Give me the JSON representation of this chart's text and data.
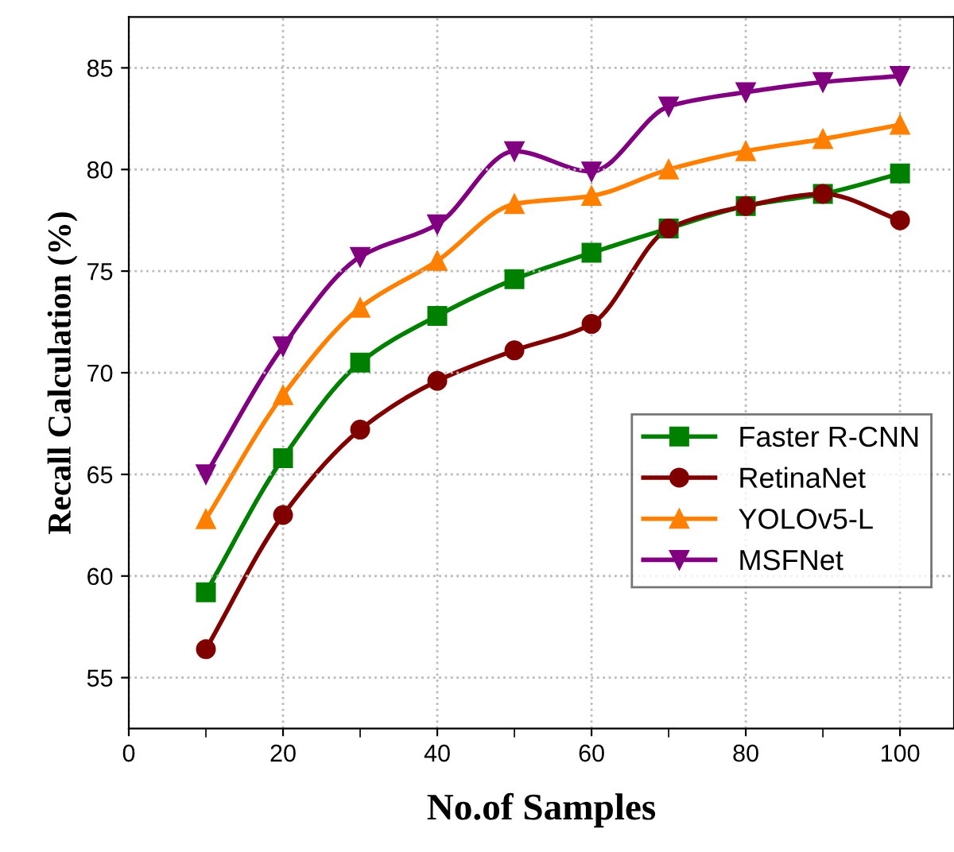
{
  "chart_data": {
    "type": "line",
    "xlabel": "No.of Samples",
    "ylabel": "Recall Calculation (%)",
    "x": [
      10,
      20,
      30,
      40,
      50,
      60,
      70,
      80,
      90,
      100
    ],
    "xlim": [
      0,
      107
    ],
    "xticks": [
      0,
      20,
      40,
      60,
      80,
      100
    ],
    "ylim": [
      52.5,
      87.5
    ],
    "yticks": [
      55,
      60,
      65,
      70,
      75,
      80,
      85
    ],
    "grid": true,
    "legend": "right",
    "line_style": "solid",
    "series": [
      {
        "name": "Faster R-CNN",
        "color": "#008000",
        "marker": "square",
        "values": [
          59.2,
          65.8,
          70.5,
          72.8,
          74.6,
          75.9,
          77.1,
          78.2,
          78.8,
          79.8
        ]
      },
      {
        "name": "RetinaNet",
        "color": "#800000",
        "marker": "circle",
        "values": [
          56.4,
          63.0,
          67.2,
          69.6,
          71.1,
          72.4,
          77.1,
          78.2,
          78.8,
          77.5
        ]
      },
      {
        "name": "YOLOv5-L",
        "color": "#ff8000",
        "marker": "triangle",
        "values": [
          62.8,
          68.9,
          73.2,
          75.5,
          78.3,
          78.7,
          80.0,
          80.9,
          81.5,
          82.2
        ]
      },
      {
        "name": "MSFNet",
        "color": "#800080",
        "marker": "triangle_down",
        "values": [
          65.0,
          71.3,
          75.7,
          77.3,
          80.9,
          79.9,
          83.1,
          83.8,
          84.3,
          84.6
        ]
      }
    ]
  }
}
